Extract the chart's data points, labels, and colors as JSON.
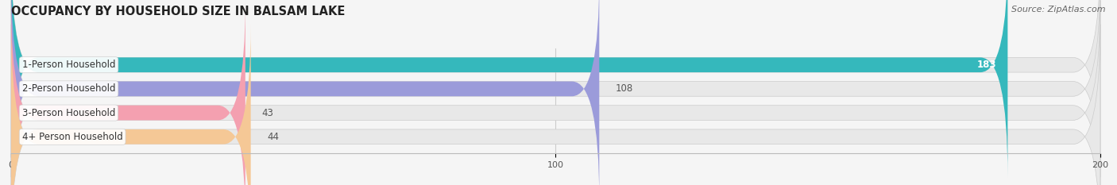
{
  "title": "OCCUPANCY BY HOUSEHOLD SIZE IN BALSAM LAKE",
  "source": "Source: ZipAtlas.com",
  "categories": [
    "1-Person Household",
    "2-Person Household",
    "3-Person Household",
    "4+ Person Household"
  ],
  "values": [
    183,
    108,
    43,
    44
  ],
  "bar_colors": [
    "#35b8bc",
    "#9b9bda",
    "#f4a0b0",
    "#f5c896"
  ],
  "value_inside": [
    true,
    false,
    false,
    false
  ],
  "xlim_data": [
    0,
    200
  ],
  "xticks": [
    0,
    100,
    200
  ],
  "background_color": "#f5f5f5",
  "bar_background_color": "#e8e8e8",
  "title_fontsize": 10.5,
  "source_fontsize": 8,
  "label_fontsize": 8.5,
  "value_fontsize": 8.5,
  "bar_height": 0.62,
  "bar_gap": 0.38
}
